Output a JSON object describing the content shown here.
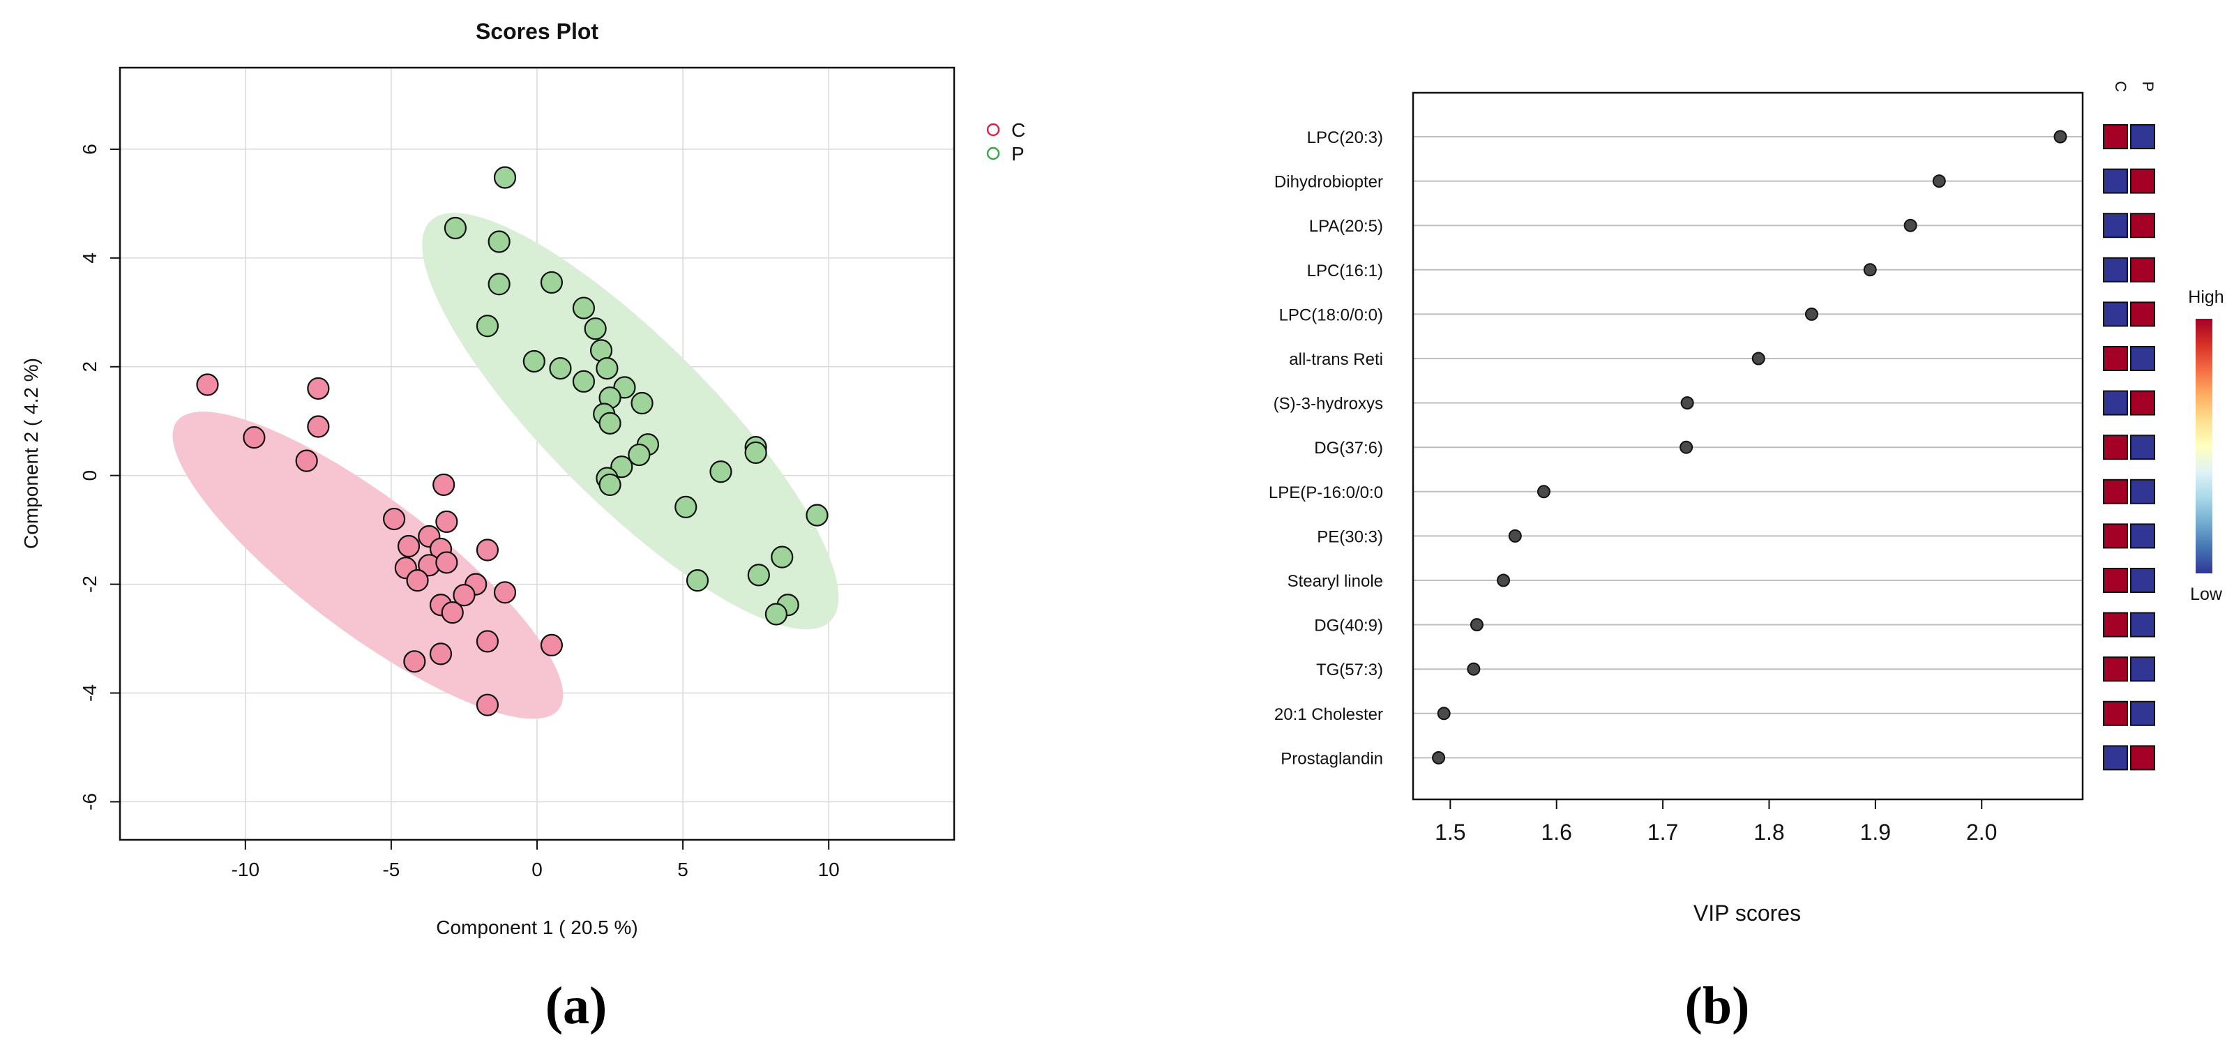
{
  "chart_data": [
    {
      "type": "scatter",
      "panel_label": "(a)",
      "title": "Scores Plot",
      "xlabel": "Component 1 ( 20.5 %)",
      "ylabel": "Component 2 ( 4.2 %)",
      "xlim": [
        -14.3,
        14.3
      ],
      "ylim": [
        -6.7,
        7.5
      ],
      "xticks": [
        -10,
        -5,
        0,
        5,
        10
      ],
      "xtick_labels": [
        "-10",
        "-5",
        "0",
        "5",
        "10"
      ],
      "yticks": [
        -6,
        -4,
        -2,
        0,
        2,
        4,
        6
      ],
      "ytick_labels": [
        "-6",
        "-4",
        "-2",
        "0",
        "2",
        "4",
        "6"
      ],
      "grid": true,
      "legend_position": "top-right",
      "series": [
        {
          "name": "C",
          "color": "#f08ca3",
          "legend_color": "#d6264a",
          "ellipse_color": "#f7c5d2",
          "ellipse": {
            "cx": -5.8,
            "cy": -1.65,
            "rx": 8.2,
            "ry": 2.3,
            "angle_deg": -37
          },
          "points": [
            [
              -11.3,
              1.67
            ],
            [
              -7.5,
              1.6
            ],
            [
              -9.7,
              0.7
            ],
            [
              -7.5,
              0.9
            ],
            [
              -7.9,
              0.27
            ],
            [
              -3.2,
              -0.17
            ],
            [
              -4.9,
              -0.8
            ],
            [
              -3.1,
              -0.85
            ],
            [
              -3.7,
              -1.12
            ],
            [
              -4.4,
              -1.3
            ],
            [
              -3.3,
              -1.35
            ],
            [
              -1.7,
              -1.37
            ],
            [
              -4.5,
              -1.7
            ],
            [
              -3.7,
              -1.65
            ],
            [
              -3.1,
              -1.6
            ],
            [
              -4.1,
              -1.93
            ],
            [
              -2.1,
              -2.0
            ],
            [
              -2.5,
              -2.2
            ],
            [
              -1.1,
              -2.15
            ],
            [
              -3.3,
              -2.38
            ],
            [
              -2.9,
              -2.52
            ],
            [
              -1.7,
              -3.05
            ],
            [
              0.5,
              -3.12
            ],
            [
              -3.3,
              -3.28
            ],
            [
              -4.2,
              -3.42
            ],
            [
              -1.7,
              -4.22
            ]
          ]
        },
        {
          "name": "P",
          "color": "#9ed39a",
          "legend_color": "#3aa84a",
          "ellipse_color": "#d8efd6",
          "ellipse": {
            "cx": 3.2,
            "cy": 1.0,
            "rx": 9.7,
            "ry": 2.8,
            "angle_deg": -45
          },
          "points": [
            [
              -1.1,
              5.48
            ],
            [
              -2.8,
              4.55
            ],
            [
              -1.3,
              4.3
            ],
            [
              0.5,
              3.55
            ],
            [
              -1.3,
              3.52
            ],
            [
              1.6,
              3.08
            ],
            [
              -1.7,
              2.75
            ],
            [
              2.0,
              2.7
            ],
            [
              2.2,
              2.3
            ],
            [
              -0.1,
              2.1
            ],
            [
              0.8,
              1.97
            ],
            [
              2.4,
              1.97
            ],
            [
              1.6,
              1.73
            ],
            [
              3.0,
              1.62
            ],
            [
              2.5,
              1.43
            ],
            [
              3.6,
              1.33
            ],
            [
              2.3,
              1.13
            ],
            [
              2.5,
              0.96
            ],
            [
              3.8,
              0.57
            ],
            [
              7.5,
              0.52
            ],
            [
              3.5,
              0.38
            ],
            [
              7.5,
              0.42
            ],
            [
              2.9,
              0.16
            ],
            [
              6.3,
              0.07
            ],
            [
              2.4,
              -0.05
            ],
            [
              2.5,
              -0.17
            ],
            [
              5.1,
              -0.58
            ],
            [
              9.6,
              -0.73
            ],
            [
              8.4,
              -1.5
            ],
            [
              7.6,
              -1.83
            ],
            [
              5.5,
              -1.93
            ],
            [
              8.6,
              -2.38
            ],
            [
              8.2,
              -2.55
            ]
          ]
        }
      ]
    },
    {
      "type": "dot",
      "panel_label": "(b)",
      "xlabel": "VIP scores",
      "xlim": [
        1.465,
        2.095
      ],
      "xticks": [
        1.5,
        1.6,
        1.7,
        1.8,
        1.9,
        2.0
      ],
      "xtick_labels": [
        "1.5",
        "1.6",
        "1.7",
        "1.8",
        "1.9",
        "2.0"
      ],
      "grid": true,
      "features": [
        {
          "name": "LPC(20:3)",
          "vip": 2.074,
          "C": "high",
          "P": "low"
        },
        {
          "name": "Dihydrobiopter",
          "vip": 1.96,
          "C": "low",
          "P": "high"
        },
        {
          "name": "LPA(20:5)",
          "vip": 1.933,
          "C": "low",
          "P": "high"
        },
        {
          "name": "LPC(16:1)",
          "vip": 1.895,
          "C": "low",
          "P": "high"
        },
        {
          "name": "LPC(18:0/0:0)",
          "vip": 1.84,
          "C": "low",
          "P": "high"
        },
        {
          "name": "all-trans Reti",
          "vip": 1.79,
          "C": "high",
          "P": "low"
        },
        {
          "name": "(S)-3-hydroxys",
          "vip": 1.723,
          "C": "low",
          "P": "high"
        },
        {
          "name": "DG(37:6)",
          "vip": 1.722,
          "C": "high",
          "P": "low"
        },
        {
          "name": "LPE(P-16:0/0:0",
          "vip": 1.588,
          "C": "high",
          "P": "low"
        },
        {
          "name": "PE(30:3)",
          "vip": 1.561,
          "C": "high",
          "P": "low"
        },
        {
          "name": "Stearyl linole",
          "vip": 1.55,
          "C": "high",
          "P": "low"
        },
        {
          "name": "DG(40:9)",
          "vip": 1.525,
          "C": "high",
          "P": "low"
        },
        {
          "name": "TG(57:3)",
          "vip": 1.522,
          "C": "high",
          "P": "low"
        },
        {
          "name": "20:1 Cholester",
          "vip": 1.494,
          "C": "high",
          "P": "low"
        },
        {
          "name": "Prostaglandin",
          "vip": 1.489,
          "C": "low",
          "P": "high"
        }
      ],
      "heat_columns": [
        "C",
        "P"
      ],
      "colors": {
        "high": "#a50026",
        "low": "#313695"
      },
      "colorbar": {
        "high_label": "High",
        "low_label": "Low",
        "stops": [
          "#a50026",
          "#d73027",
          "#f46d43",
          "#fdae61",
          "#fee090",
          "#ffffbf",
          "#e0f3f8",
          "#abd9e9",
          "#74add1",
          "#4575b4",
          "#313695"
        ]
      }
    }
  ]
}
